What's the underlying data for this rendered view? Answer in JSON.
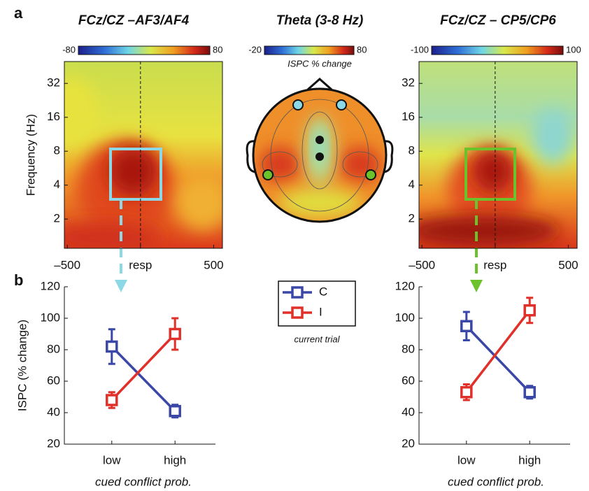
{
  "panel_labels": [
    "a",
    "b"
  ],
  "chart_data": [
    {
      "type": "heatmap",
      "title": "FCz/CZ –AF3/AF4",
      "xlim": [
        -520,
        560
      ],
      "xticks": [
        {
          "value": -500,
          "label": "–500"
        },
        {
          "value": 0,
          "label": "resp"
        },
        500
      ],
      "ylim": [
        1.1,
        50
      ],
      "log_y": true,
      "yticks": [
        2,
        4,
        8,
        16,
        32
      ],
      "ylabel": "Frequency (Hz)",
      "colorbar": {
        "lim": [
          -80,
          80
        ],
        "ticks": [
          -80,
          80
        ]
      }
    },
    {
      "type": "topo",
      "title": "Theta (3-8 Hz)",
      "colorbar": {
        "lim": [
          -20,
          80
        ],
        "ticks": [
          -20,
          80
        ],
        "label": "ISPC % change"
      }
    },
    {
      "type": "heatmap",
      "title": "FCz/CZ – CP5/CP6",
      "xlim": [
        -520,
        560
      ],
      "xticks": [
        {
          "value": -500,
          "label": "–500"
        },
        {
          "value": 0,
          "label": "resp"
        },
        500
      ],
      "ylim": [
        1.1,
        50
      ],
      "log_y": true,
      "yticks": [
        2,
        4,
        8,
        16,
        32
      ],
      "colorbar": {
        "lim": [
          -100,
          100
        ],
        "ticks": [
          -100,
          100
        ]
      }
    },
    {
      "type": "line",
      "categories": [
        "low",
        "high"
      ],
      "xlabel": "cued conflict prob.",
      "ylabel": "ISPC (% change)",
      "ylim": [
        20,
        120
      ],
      "yticks": [
        20,
        40,
        60,
        80,
        100,
        120
      ],
      "legend_title": "current trial",
      "series": [
        {
          "name": "C",
          "color": "#3b47a6",
          "values": [
            82,
            41
          ],
          "errors": [
            11,
            4
          ]
        },
        {
          "name": "I",
          "color": "#e0302a",
          "values": [
            48,
            90
          ],
          "errors": [
            5,
            10
          ]
        }
      ]
    },
    {
      "type": "line",
      "categories": [
        "low",
        "high"
      ],
      "xlabel": "cued conflict prob.",
      "ylim": [
        20,
        120
      ],
      "yticks": [
        20,
        40,
        60,
        80,
        100,
        120
      ],
      "series": [
        {
          "color": "#3b47a6",
          "values": [
            95,
            53
          ],
          "errors": [
            9,
            4
          ]
        },
        {
          "color": "#e0302a",
          "values": [
            53,
            105
          ],
          "errors": [
            5,
            8
          ]
        }
      ]
    }
  ]
}
